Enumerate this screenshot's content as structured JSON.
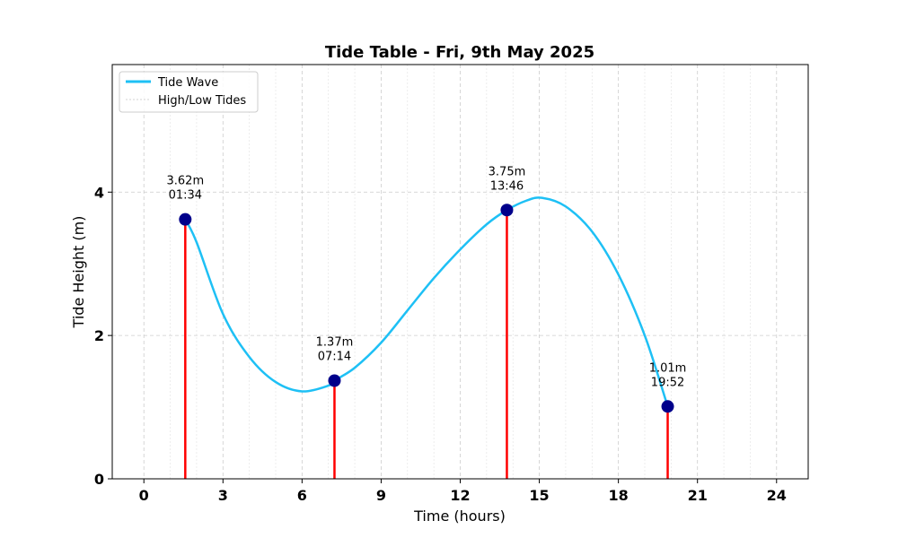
{
  "chart_data": {
    "type": "line",
    "title": "Tide Table - Fri, 9th May 2025",
    "xlabel": "Time (hours)",
    "ylabel": "Tide Height (m)",
    "xlim": [
      -1.2,
      25.2
    ],
    "ylim": [
      0,
      5.78
    ],
    "x_ticks": [
      0,
      3,
      6,
      9,
      12,
      15,
      18,
      21,
      24
    ],
    "x_tick_labels": [
      "0",
      "3",
      "6",
      "9",
      "12",
      "15",
      "18",
      "21",
      "24"
    ],
    "y_ticks": [
      0,
      2,
      4
    ],
    "y_tick_labels": [
      "0",
      "2",
      "4"
    ],
    "grid": true,
    "legend_position": "top-left",
    "series": [
      {
        "name": "Tide Wave",
        "color": "#1ec0f5",
        "x": [
          1.57,
          2.0,
          3.0,
          4.0,
          5.0,
          6.0,
          7.0,
          7.23,
          8.0,
          9.0,
          10.0,
          11.0,
          12.0,
          13.0,
          13.77,
          14.5,
          15.1,
          16.0,
          17.0,
          18.0,
          19.0,
          19.87
        ],
        "y": [
          3.62,
          3.3,
          2.3,
          1.7,
          1.35,
          1.22,
          1.3,
          1.37,
          1.55,
          1.9,
          2.35,
          2.8,
          3.2,
          3.55,
          3.75,
          3.88,
          3.92,
          3.8,
          3.45,
          2.85,
          2.0,
          1.01
        ]
      },
      {
        "name": "High/Low Tides",
        "color": "#d3d3d3"
      }
    ],
    "tides": [
      {
        "x": 1.57,
        "y": 3.62,
        "height_label": "3.62m",
        "time_label": "01:34"
      },
      {
        "x": 7.23,
        "y": 1.37,
        "height_label": "1.37m",
        "time_label": "07:14"
      },
      {
        "x": 13.77,
        "y": 3.75,
        "height_label": "3.75m",
        "time_label": "13:46"
      },
      {
        "x": 19.87,
        "y": 1.01,
        "height_label": "1.01m",
        "time_label": "19:52"
      }
    ],
    "marker_color": "#00008b",
    "stem_color": "#ff0000"
  }
}
